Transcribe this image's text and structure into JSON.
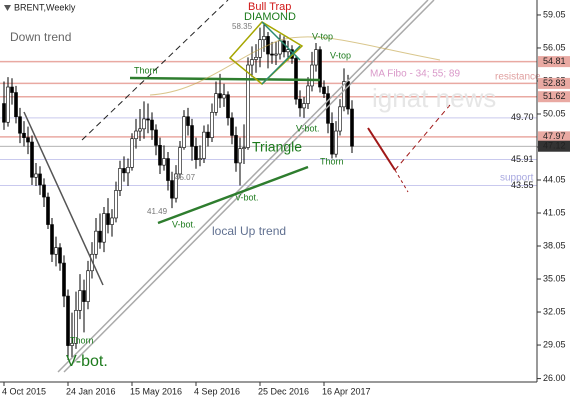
{
  "chart_data": {
    "type": "candlestick",
    "categories": [
      "4 Oct 2015",
      null,
      null,
      null,
      null,
      null,
      null,
      null,
      null,
      null,
      null,
      null,
      null,
      null,
      null,
      null,
      "24 Jan 2016",
      null,
      null,
      null,
      null,
      null,
      null,
      null,
      null,
      null,
      null,
      null,
      null,
      null,
      null,
      null,
      "15 May 2016",
      null,
      null,
      null,
      null,
      null,
      null,
      null,
      null,
      null,
      null,
      null,
      null,
      null,
      null,
      null,
      "4 Sep 2016",
      null,
      null,
      null,
      null,
      null,
      null,
      null,
      null,
      null,
      null,
      null,
      null,
      null,
      null,
      null,
      "25 Dec 2016",
      null,
      null,
      null,
      null,
      null,
      null,
      null,
      null,
      null,
      null,
      null,
      null,
      null,
      null,
      null,
      "16 Apr 2017",
      null,
      null,
      null,
      null,
      null,
      null,
      null
    ],
    "open": [
      51.0,
      49.3,
      52.5,
      52.0,
      49.8,
      48.3,
      47.9,
      47.5,
      44.3,
      44.6,
      43.6,
      42.5,
      40.0,
      37.3,
      37.9,
      36.5,
      33.5,
      29.0,
      29.2,
      32.2,
      34.0,
      33.0,
      35.8,
      37.3,
      39.4,
      38.4,
      41.0,
      40.0,
      40.6,
      43.1,
      45.1,
      44.7,
      45.2,
      47.8,
      48.5,
      48.7,
      49.6,
      49.5,
      48.6,
      47.2,
      45.4,
      46.0,
      44.0,
      42.4,
      44.6,
      47.0,
      49.8,
      49.0,
      47.1,
      45.9,
      46.0,
      48.4,
      47.9,
      50.2,
      51.9,
      51.5,
      51.8,
      49.7,
      48.1,
      45.6,
      46.9,
      47.0,
      54.5,
      55.0,
      55.2,
      56.8,
      57.1,
      55.5,
      55.4,
      55.5,
      56.7,
      55.7,
      55.9,
      55.1,
      51.4,
      50.6,
      51.0,
      52.6,
      54.5,
      55.9,
      52.5,
      51.9,
      49.2,
      46.4,
      48.5,
      50.7,
      53.0,
      50.5
    ],
    "high": [
      53.0,
      53.4,
      53.3,
      52.6,
      50.6,
      49.4,
      48.9,
      48.1,
      45.6,
      45.3,
      44.2,
      42.9,
      40.6,
      38.9,
      38.3,
      37.2,
      34.1,
      32.0,
      33.9,
      35.5,
      35.0,
      36.7,
      38.4,
      40.6,
      41.0,
      41.6,
      42.4,
      41.4,
      43.9,
      45.8,
      46.2,
      46.0,
      48.3,
      49.6,
      50.5,
      51.2,
      51.0,
      50.2,
      49.1,
      47.9,
      47.2,
      46.6,
      44.8,
      45.4,
      47.6,
      50.4,
      50.6,
      49.6,
      47.9,
      47.2,
      49.0,
      49.1,
      51.0,
      53.0,
      53.7,
      52.8,
      52.1,
      50.2,
      48.9,
      47.9,
      49.1,
      55.2,
      56.2,
      56.4,
      57.9,
      58.35,
      57.5,
      56.6,
      56.6,
      57.3,
      57.1,
      56.7,
      56.3,
      55.4,
      52.2,
      51.6,
      53.4,
      55.7,
      56.5,
      56.2,
      53.1,
      52.6,
      50.2,
      49.4,
      51.4,
      54.2,
      53.6,
      51.3
    ],
    "low": [
      48.6,
      48.9,
      50.9,
      49.2,
      47.4,
      47.1,
      46.4,
      43.6,
      43.5,
      42.7,
      41.6,
      39.6,
      36.6,
      36.2,
      35.8,
      32.5,
      27.7,
      27.9,
      28.7,
      31.4,
      30.2,
      32.3,
      35.1,
      36.9,
      37.8,
      37.5,
      39.2,
      38.9,
      40.2,
      42.6,
      43.9,
      43.5,
      44.9,
      46.9,
      47.6,
      47.8,
      48.3,
      47.7,
      46.3,
      44.6,
      44.9,
      43.1,
      41.49,
      42.0,
      44.2,
      46.8,
      48.1,
      45.8,
      45.07,
      45.3,
      45.6,
      47.1,
      47.5,
      49.9,
      50.6,
      50.7,
      49.0,
      47.3,
      44.8,
      43.55,
      45.5,
      46.8,
      53.4,
      53.8,
      54.3,
      55.7,
      54.2,
      54.6,
      54.5,
      55.0,
      55.2,
      54.9,
      54.6,
      50.9,
      49.8,
      49.7,
      50.5,
      52.1,
      53.9,
      52.0,
      51.5,
      48.3,
      46.0,
      46.1,
      48.1,
      50.3,
      50.0,
      46.5
    ],
    "close": [
      49.3,
      52.5,
      52.0,
      49.8,
      48.3,
      47.9,
      47.5,
      44.3,
      44.6,
      43.6,
      42.5,
      40.0,
      37.3,
      37.9,
      36.5,
      33.5,
      29.0,
      29.2,
      32.2,
      34.0,
      33.0,
      35.8,
      37.3,
      39.4,
      38.4,
      41.0,
      40.0,
      40.6,
      43.1,
      45.1,
      44.7,
      45.2,
      47.8,
      48.5,
      48.7,
      49.6,
      49.5,
      48.6,
      47.2,
      45.4,
      46.0,
      44.0,
      42.4,
      44.6,
      47.0,
      49.8,
      49.0,
      47.1,
      45.9,
      46.0,
      48.4,
      47.9,
      50.2,
      51.9,
      51.5,
      51.8,
      49.7,
      48.1,
      45.6,
      46.9,
      47.0,
      54.5,
      55.0,
      55.2,
      56.8,
      57.1,
      55.5,
      55.4,
      55.5,
      56.7,
      55.7,
      55.9,
      55.1,
      51.4,
      50.6,
      51.0,
      52.6,
      54.5,
      55.9,
      52.5,
      51.9,
      49.2,
      46.4,
      48.5,
      50.7,
      53.0,
      50.5,
      47.12
    ],
    "ylim": [
      25.69,
      60.41
    ],
    "yticks": [
      59.05,
      56.05,
      53.05,
      50.05,
      47.05,
      44.05,
      41.05,
      38.05,
      35.05,
      32.05,
      29.05,
      {
        "value": 26,
        "label": "26.00"
      }
    ],
    "levels": [
      {
        "value": 54.81,
        "color": "#e9a9a2",
        "boxed": true
      },
      {
        "value": 52.83,
        "color": "#e9a9a2",
        "boxed": true
      },
      {
        "value": 51.62,
        "color": "#e9a9a2",
        "boxed": true
      },
      {
        "value": 49.7,
        "label": "49.70",
        "color": "#c9c9ee",
        "boxed": false
      },
      {
        "value": 47.97,
        "color": "#e9a9a2",
        "boxed": true
      },
      {
        "value": 45.91,
        "color": "#c9c9ee",
        "boxed": false
      },
      {
        "value": 43.55,
        "color": "#c9c9ee",
        "boxed": false
      }
    ],
    "up_color": "#ffffff",
    "down_color": "#000000",
    "annotations": [
      "BRENT,Weekly",
      "Down trend",
      "Bull Trap",
      "DIAMOND",
      "58.35",
      "V-top",
      "V-top",
      "Thorn",
      "MA Fibo - 34; 55; 89",
      "resistance",
      "V-bot.",
      "Triangle",
      "Thorn",
      "45.07",
      "support",
      "V-bot.",
      "41.49",
      "V-bot.",
      "local Up trend",
      "Thorn",
      "V-bot.",
      "ignat news"
    ]
  }
}
